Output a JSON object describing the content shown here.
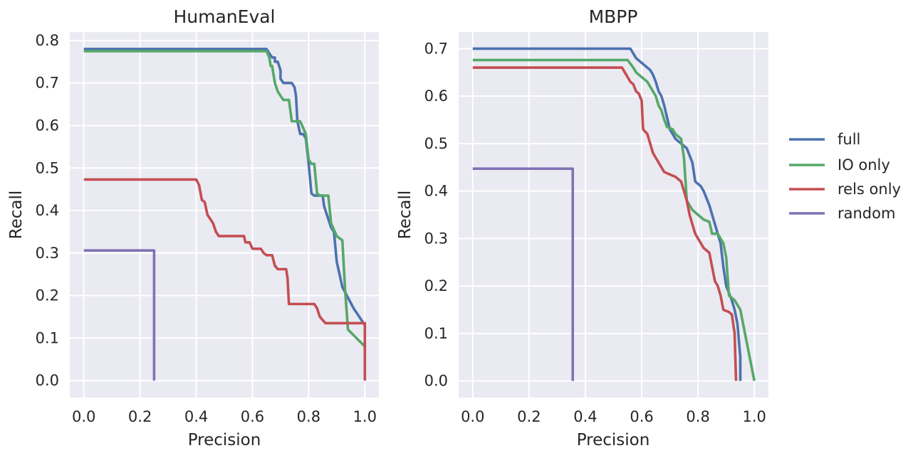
{
  "colors": {
    "full": "#4c72b0",
    "io_only": "#55a868",
    "rels_only": "#c44e52",
    "random": "#8172b3"
  },
  "legend": {
    "placement": "center-right",
    "items": [
      {
        "label": "full",
        "color": "#4c72b0"
      },
      {
        "label": "IO only",
        "color": "#55a868"
      },
      {
        "label": "rels only",
        "color": "#c44e52"
      },
      {
        "label": "random",
        "color": "#8172b3"
      }
    ]
  },
  "chart_data": [
    {
      "type": "line",
      "title": "HumanEval",
      "xlabel": "Precision",
      "ylabel": "Recall",
      "xlim": [
        -0.05,
        1.05
      ],
      "ylim": [
        -0.04,
        0.82
      ],
      "xticks": [
        0.0,
        0.2,
        0.4,
        0.6,
        0.8,
        1.0
      ],
      "xtick_labels": [
        "0.0",
        "0.2",
        "0.4",
        "0.6",
        "0.8",
        "1.0"
      ],
      "yticks": [
        0.0,
        0.1,
        0.2,
        0.3,
        0.4,
        0.5,
        0.6,
        0.7,
        0.8
      ],
      "ytick_labels": [
        "0.0",
        "0.1",
        "0.2",
        "0.3",
        "0.4",
        "0.5",
        "0.6",
        "0.7",
        "0.8"
      ],
      "grid": true,
      "series": [
        {
          "name": "full",
          "color": "#4c72b0",
          "points": [
            [
              0.0,
              0.78
            ],
            [
              0.65,
              0.78
            ],
            [
              0.66,
              0.77
            ],
            [
              0.67,
              0.76
            ],
            [
              0.68,
              0.76
            ],
            [
              0.68,
              0.75
            ],
            [
              0.69,
              0.75
            ],
            [
              0.7,
              0.73
            ],
            [
              0.7,
              0.71
            ],
            [
              0.71,
              0.7
            ],
            [
              0.74,
              0.7
            ],
            [
              0.75,
              0.69
            ],
            [
              0.755,
              0.67
            ],
            [
              0.76,
              0.61
            ],
            [
              0.77,
              0.58
            ],
            [
              0.78,
              0.58
            ],
            [
              0.79,
              0.57
            ],
            [
              0.8,
              0.51
            ],
            [
              0.81,
              0.44
            ],
            [
              0.82,
              0.435
            ],
            [
              0.85,
              0.435
            ],
            [
              0.855,
              0.41
            ],
            [
              0.86,
              0.4
            ],
            [
              0.87,
              0.38
            ],
            [
              0.88,
              0.36
            ],
            [
              0.89,
              0.35
            ],
            [
              0.9,
              0.28
            ],
            [
              0.92,
              0.22
            ],
            [
              0.96,
              0.17
            ],
            [
              0.98,
              0.15
            ],
            [
              1.0,
              0.13
            ]
          ]
        },
        {
          "name": "IO only",
          "color": "#55a868",
          "points": [
            [
              0.0,
              0.775
            ],
            [
              0.65,
              0.775
            ],
            [
              0.66,
              0.76
            ],
            [
              0.665,
              0.74
            ],
            [
              0.67,
              0.74
            ],
            [
              0.68,
              0.7
            ],
            [
              0.69,
              0.68
            ],
            [
              0.7,
              0.67
            ],
            [
              0.71,
              0.66
            ],
            [
              0.72,
              0.66
            ],
            [
              0.73,
              0.66
            ],
            [
              0.74,
              0.61
            ],
            [
              0.76,
              0.61
            ],
            [
              0.77,
              0.61
            ],
            [
              0.79,
              0.58
            ],
            [
              0.8,
              0.52
            ],
            [
              0.81,
              0.51
            ],
            [
              0.82,
              0.51
            ],
            [
              0.83,
              0.44
            ],
            [
              0.84,
              0.435
            ],
            [
              0.87,
              0.435
            ],
            [
              0.88,
              0.37
            ],
            [
              0.9,
              0.34
            ],
            [
              0.92,
              0.33
            ],
            [
              0.93,
              0.21
            ],
            [
              0.94,
              0.12
            ],
            [
              1.0,
              0.08
            ]
          ]
        },
        {
          "name": "rels only",
          "color": "#c44e52",
          "points": [
            [
              0.0,
              0.473
            ],
            [
              0.4,
              0.473
            ],
            [
              0.41,
              0.46
            ],
            [
              0.42,
              0.425
            ],
            [
              0.43,
              0.42
            ],
            [
              0.44,
              0.39
            ],
            [
              0.45,
              0.38
            ],
            [
              0.46,
              0.37
            ],
            [
              0.465,
              0.36
            ],
            [
              0.47,
              0.35
            ],
            [
              0.48,
              0.34
            ],
            [
              0.55,
              0.34
            ],
            [
              0.57,
              0.34
            ],
            [
              0.575,
              0.325
            ],
            [
              0.59,
              0.325
            ],
            [
              0.6,
              0.31
            ],
            [
              0.63,
              0.31
            ],
            [
              0.64,
              0.3
            ],
            [
              0.65,
              0.295
            ],
            [
              0.67,
              0.295
            ],
            [
              0.68,
              0.27
            ],
            [
              0.69,
              0.262
            ],
            [
              0.72,
              0.262
            ],
            [
              0.725,
              0.24
            ],
            [
              0.73,
              0.18
            ],
            [
              0.8,
              0.18
            ],
            [
              0.82,
              0.18
            ],
            [
              0.83,
              0.17
            ],
            [
              0.84,
              0.15
            ],
            [
              0.86,
              0.135
            ],
            [
              1.0,
              0.135
            ],
            [
              1.0,
              0.0
            ]
          ]
        },
        {
          "name": "random",
          "color": "#8172b3",
          "points": [
            [
              0.0,
              0.306
            ],
            [
              0.25,
              0.306
            ],
            [
              0.25,
              0.0
            ]
          ]
        }
      ]
    },
    {
      "type": "line",
      "title": "MBPP",
      "xlabel": "Precision",
      "ylabel": "Recall",
      "xlim": [
        -0.05,
        1.05
      ],
      "ylim": [
        -0.035,
        0.735
      ],
      "xticks": [
        0.0,
        0.2,
        0.4,
        0.6,
        0.8,
        1.0
      ],
      "xtick_labels": [
        "0.0",
        "0.2",
        "0.4",
        "0.6",
        "0.8",
        "1.0"
      ],
      "yticks": [
        0.0,
        0.1,
        0.2,
        0.3,
        0.4,
        0.5,
        0.6,
        0.7
      ],
      "ytick_labels": [
        "0.0",
        "0.1",
        "0.2",
        "0.3",
        "0.4",
        "0.5",
        "0.6",
        "0.7"
      ],
      "grid": true,
      "series": [
        {
          "name": "full",
          "color": "#4c72b0",
          "points": [
            [
              0.0,
              0.7
            ],
            [
              0.56,
              0.7
            ],
            [
              0.58,
              0.68
            ],
            [
              0.6,
              0.67
            ],
            [
              0.62,
              0.66
            ],
            [
              0.63,
              0.655
            ],
            [
              0.64,
              0.645
            ],
            [
              0.65,
              0.63
            ],
            [
              0.66,
              0.61
            ],
            [
              0.67,
              0.6
            ],
            [
              0.68,
              0.58
            ],
            [
              0.69,
              0.555
            ],
            [
              0.7,
              0.53
            ],
            [
              0.72,
              0.51
            ],
            [
              0.74,
              0.5
            ],
            [
              0.76,
              0.49
            ],
            [
              0.78,
              0.46
            ],
            [
              0.79,
              0.42
            ],
            [
              0.81,
              0.41
            ],
            [
              0.82,
              0.4
            ],
            [
              0.84,
              0.37
            ],
            [
              0.86,
              0.33
            ],
            [
              0.87,
              0.31
            ],
            [
              0.88,
              0.29
            ],
            [
              0.89,
              0.24
            ],
            [
              0.9,
              0.2
            ],
            [
              0.92,
              0.17
            ],
            [
              0.93,
              0.15
            ],
            [
              0.94,
              0.12
            ],
            [
              0.95,
              0.05
            ],
            [
              0.95,
              0.0
            ]
          ]
        },
        {
          "name": "IO only",
          "color": "#55a868",
          "points": [
            [
              0.0,
              0.676
            ],
            [
              0.55,
              0.676
            ],
            [
              0.57,
              0.66
            ],
            [
              0.58,
              0.65
            ],
            [
              0.6,
              0.64
            ],
            [
              0.62,
              0.63
            ],
            [
              0.63,
              0.62
            ],
            [
              0.65,
              0.6
            ],
            [
              0.66,
              0.58
            ],
            [
              0.67,
              0.57
            ],
            [
              0.68,
              0.55
            ],
            [
              0.69,
              0.535
            ],
            [
              0.71,
              0.53
            ],
            [
              0.72,
              0.52
            ],
            [
              0.74,
              0.51
            ],
            [
              0.75,
              0.47
            ],
            [
              0.76,
              0.38
            ],
            [
              0.78,
              0.36
            ],
            [
              0.8,
              0.35
            ],
            [
              0.82,
              0.34
            ],
            [
              0.84,
              0.335
            ],
            [
              0.85,
              0.31
            ],
            [
              0.87,
              0.31
            ],
            [
              0.88,
              0.3
            ],
            [
              0.89,
              0.29
            ],
            [
              0.9,
              0.26
            ],
            [
              0.91,
              0.18
            ],
            [
              0.93,
              0.17
            ],
            [
              0.95,
              0.15
            ],
            [
              1.0,
              0.0
            ]
          ]
        },
        {
          "name": "rels only",
          "color": "#c44e52",
          "points": [
            [
              0.0,
              0.66
            ],
            [
              0.53,
              0.66
            ],
            [
              0.54,
              0.65
            ],
            [
              0.55,
              0.64
            ],
            [
              0.56,
              0.63
            ],
            [
              0.57,
              0.625
            ],
            [
              0.58,
              0.61
            ],
            [
              0.59,
              0.605
            ],
            [
              0.6,
              0.59
            ],
            [
              0.605,
              0.53
            ],
            [
              0.62,
              0.52
            ],
            [
              0.63,
              0.5
            ],
            [
              0.64,
              0.48
            ],
            [
              0.65,
              0.47
            ],
            [
              0.66,
              0.46
            ],
            [
              0.67,
              0.45
            ],
            [
              0.68,
              0.44
            ],
            [
              0.7,
              0.435
            ],
            [
              0.72,
              0.43
            ],
            [
              0.74,
              0.42
            ],
            [
              0.75,
              0.4
            ],
            [
              0.76,
              0.38
            ],
            [
              0.77,
              0.35
            ],
            [
              0.78,
              0.33
            ],
            [
              0.79,
              0.31
            ],
            [
              0.8,
              0.3
            ],
            [
              0.81,
              0.29
            ],
            [
              0.82,
              0.28
            ],
            [
              0.84,
              0.27
            ],
            [
              0.85,
              0.24
            ],
            [
              0.86,
              0.21
            ],
            [
              0.87,
              0.2
            ],
            [
              0.88,
              0.18
            ],
            [
              0.89,
              0.15
            ],
            [
              0.91,
              0.145
            ],
            [
              0.92,
              0.14
            ],
            [
              0.93,
              0.1
            ],
            [
              0.935,
              0.0
            ]
          ]
        },
        {
          "name": "random",
          "color": "#8172b3",
          "points": [
            [
              0.0,
              0.447
            ],
            [
              0.355,
              0.447
            ],
            [
              0.355,
              0.0
            ]
          ]
        }
      ]
    }
  ]
}
